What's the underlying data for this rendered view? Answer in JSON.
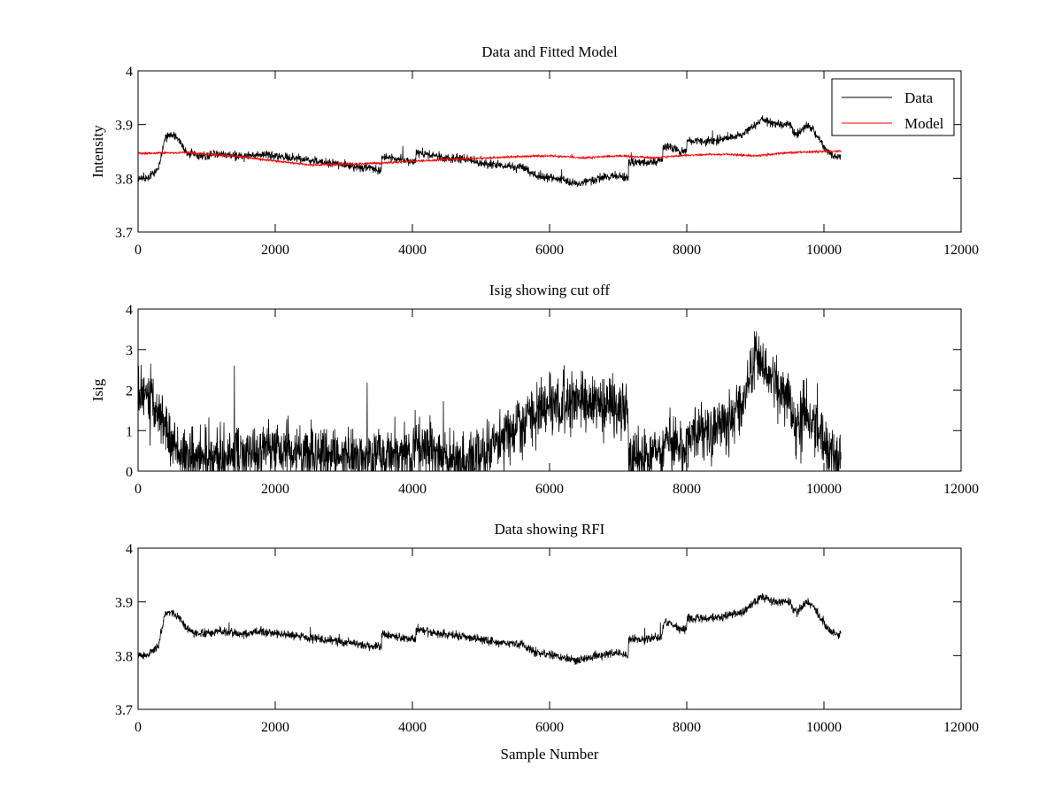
{
  "chart_data": [
    {
      "type": "line",
      "title": "Data and Fitted Model",
      "xlabel": "",
      "ylabel": "Intensity",
      "xlim": [
        0,
        12000
      ],
      "ylim": [
        3.7,
        4.0
      ],
      "xticks": [
        0,
        2000,
        4000,
        6000,
        8000,
        10000,
        12000
      ],
      "xtick_labels": [
        "0",
        "2000",
        "4000",
        "6000",
        "8000",
        "10000",
        "12000"
      ],
      "yticks": [
        3.7,
        3.8,
        3.9,
        4.0
      ],
      "ytick_labels": [
        "3.7",
        "3.8",
        "3.9",
        "4"
      ],
      "grid": false,
      "legend_position": "top-right",
      "legend": [
        "Data",
        "Model"
      ],
      "series": [
        {
          "name": "Data",
          "color": "#000000",
          "x": [
            0,
            150,
            300,
            400,
            500,
            600,
            700,
            900,
            1200,
            1500,
            1800,
            2100,
            2400,
            2700,
            3000,
            3300,
            3549,
            3551,
            3800,
            4000,
            4049,
            4051,
            4400,
            4800,
            5200,
            5600,
            5800,
            6100,
            6400,
            6700,
            7000,
            7149,
            7151,
            7400,
            7649,
            7651,
            7750,
            7900,
            7999,
            8001,
            8200,
            8400,
            8600,
            8800,
            9000,
            9100,
            9300,
            9500,
            9600,
            9750,
            9850,
            9950,
            10050,
            10150,
            10250
          ],
          "y": [
            3.8,
            3.8,
            3.82,
            3.88,
            3.88,
            3.87,
            3.85,
            3.84,
            3.845,
            3.84,
            3.845,
            3.84,
            3.835,
            3.83,
            3.825,
            3.82,
            3.815,
            3.84,
            3.835,
            3.83,
            3.83,
            3.85,
            3.84,
            3.835,
            3.825,
            3.82,
            3.805,
            3.8,
            3.79,
            3.8,
            3.805,
            3.8,
            3.83,
            3.83,
            3.835,
            3.86,
            3.86,
            3.85,
            3.85,
            3.87,
            3.87,
            3.87,
            3.875,
            3.88,
            3.9,
            3.91,
            3.9,
            3.9,
            3.88,
            3.9,
            3.89,
            3.87,
            3.85,
            3.84,
            3.84
          ],
          "noise": 0.005
        },
        {
          "name": "Model",
          "color": "#ff0000",
          "x": [
            0,
            700,
            1500,
            2500,
            3500,
            4500,
            5500,
            6000,
            6500,
            7000,
            7500,
            8000,
            8500,
            9000,
            9500,
            10000,
            10250
          ],
          "y": [
            3.846,
            3.848,
            3.84,
            3.825,
            3.828,
            3.835,
            3.84,
            3.842,
            3.838,
            3.842,
            3.838,
            3.843,
            3.845,
            3.842,
            3.848,
            3.85,
            3.85
          ],
          "noise": 0.0012
        }
      ]
    },
    {
      "type": "line",
      "title": "Isig showing cut off",
      "xlabel": "",
      "ylabel": "Isig",
      "xlim": [
        0,
        12000
      ],
      "ylim": [
        0,
        4
      ],
      "xticks": [
        0,
        2000,
        4000,
        6000,
        8000,
        10000,
        12000
      ],
      "xtick_labels": [
        "0",
        "2000",
        "4000",
        "6000",
        "8000",
        "10000",
        "12000"
      ],
      "yticks": [
        0,
        1,
        2,
        3,
        4
      ],
      "ytick_labels": [
        "0",
        "1",
        "2",
        "3",
        "4"
      ],
      "grid": false,
      "series": [
        {
          "name": "",
          "color": "#000000",
          "x": [
            0,
            150,
            300,
            400,
            550,
            700,
            800,
            1000,
            1500,
            2000,
            2500,
            3000,
            3500,
            4000,
            4050,
            4300,
            4700,
            5000,
            5400,
            5700,
            6000,
            6400,
            6800,
            7100,
            7149,
            7151,
            7400,
            7649,
            7700,
            7900,
            7999,
            8001,
            8300,
            8600,
            8800,
            9000,
            9100,
            9300,
            9500,
            9600,
            9750,
            9900,
            10050,
            10250
          ],
          "y": [
            1.8,
            1.9,
            1.5,
            1.0,
            0.6,
            0.2,
            0.35,
            0.35,
            0.4,
            0.6,
            0.35,
            0.3,
            0.4,
            0.3,
            0.7,
            0.6,
            0.2,
            0.4,
            0.9,
            1.4,
            1.6,
            1.75,
            1.6,
            1.6,
            1.6,
            0.4,
            0.45,
            0.5,
            1.0,
            0.6,
            0.3,
            1.0,
            1.0,
            1.2,
            1.6,
            2.8,
            2.5,
            2.2,
            1.6,
            1.0,
            1.5,
            1.2,
            0.4,
            0.4
          ],
          "noise": 0.45,
          "clip_min": 0
        }
      ]
    },
    {
      "type": "line",
      "title": "Data showing RFI",
      "xlabel": "Sample Number",
      "ylabel": "",
      "xlim": [
        0,
        12000
      ],
      "ylim": [
        3.7,
        4.0
      ],
      "xticks": [
        0,
        2000,
        4000,
        6000,
        8000,
        10000,
        12000
      ],
      "xtick_labels": [
        "0",
        "2000",
        "4000",
        "6000",
        "8000",
        "10000",
        "12000"
      ],
      "yticks": [
        3.7,
        3.8,
        3.9,
        4.0
      ],
      "ytick_labels": [
        "3.7",
        "3.8",
        "3.9",
        "4"
      ],
      "grid": false,
      "series": [
        {
          "name": "",
          "color": "#000000",
          "x": [
            0,
            150,
            300,
            400,
            500,
            600,
            700,
            900,
            1200,
            1500,
            1800,
            2100,
            2400,
            2700,
            3000,
            3300,
            3549,
            3551,
            3800,
            4000,
            4049,
            4051,
            4400,
            4800,
            5200,
            5600,
            5800,
            6100,
            6400,
            6700,
            7000,
            7149,
            7151,
            7400,
            7649,
            7651,
            7750,
            7900,
            7999,
            8001,
            8200,
            8400,
            8600,
            8800,
            9000,
            9100,
            9300,
            9500,
            9600,
            9750,
            9850,
            9950,
            10050,
            10150,
            10250
          ],
          "y": [
            3.8,
            3.8,
            3.82,
            3.88,
            3.88,
            3.87,
            3.85,
            3.84,
            3.845,
            3.84,
            3.845,
            3.84,
            3.835,
            3.83,
            3.825,
            3.82,
            3.815,
            3.84,
            3.835,
            3.83,
            3.83,
            3.85,
            3.84,
            3.835,
            3.825,
            3.82,
            3.805,
            3.8,
            3.79,
            3.8,
            3.805,
            3.8,
            3.83,
            3.83,
            3.835,
            3.86,
            3.86,
            3.85,
            3.85,
            3.87,
            3.87,
            3.87,
            3.875,
            3.88,
            3.9,
            3.91,
            3.9,
            3.9,
            3.88,
            3.9,
            3.89,
            3.87,
            3.85,
            3.84,
            3.84
          ],
          "noise": 0.005
        }
      ]
    }
  ]
}
